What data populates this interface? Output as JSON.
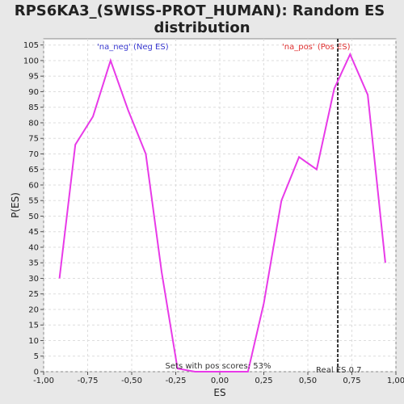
{
  "chart_data": {
    "type": "line",
    "title": "RPS6KA3_(SWISS-PROT_HUMAN): Random ES distribution",
    "title_lines": [
      "RPS6KA3_(SWISS-PROT_HUMAN): Random ES",
      "distribution"
    ],
    "xlabel": "ES",
    "ylabel": "P(ES)",
    "xlim": [
      -1.0,
      1.0
    ],
    "ylim": [
      0,
      107
    ],
    "x_ticks": [
      "-1,00",
      "-0,75",
      "-0,50",
      "-0,25",
      "0,00",
      "0,25",
      "0,50",
      "0,75",
      "1,00"
    ],
    "x_tick_values": [
      -1.0,
      -0.75,
      -0.5,
      -0.25,
      0.0,
      0.25,
      0.5,
      0.75,
      1.0
    ],
    "y_ticks": [
      0,
      5,
      10,
      15,
      20,
      25,
      30,
      35,
      40,
      45,
      50,
      55,
      60,
      65,
      70,
      75,
      80,
      85,
      90,
      95,
      100,
      105
    ],
    "grid": true,
    "series": [
      {
        "color": "#e83ae8",
        "x": [
          -0.91,
          -0.82,
          -0.72,
          -0.62,
          -0.52,
          -0.42,
          -0.33,
          -0.24,
          -0.14,
          -0.05,
          0.06,
          0.16,
          0.25,
          0.35,
          0.45,
          0.55,
          0.65,
          0.74,
          0.84,
          0.94
        ],
        "y": [
          30,
          73,
          82,
          100,
          84,
          70,
          32,
          1,
          0,
          0,
          0,
          0,
          22,
          55,
          69,
          65,
          91,
          102,
          89,
          35
        ]
      }
    ],
    "reference_line": {
      "x": 0.67,
      "label": "Real ES 0.7"
    },
    "annotations": {
      "neg_label": "'na_neg' (Neg ES)",
      "neg_color": "#3a3ad0",
      "pos_label": "'na_pos' (Pos ES)",
      "pos_color": "#e03030",
      "sets_text": "Sets with pos scores: 53%"
    }
  }
}
